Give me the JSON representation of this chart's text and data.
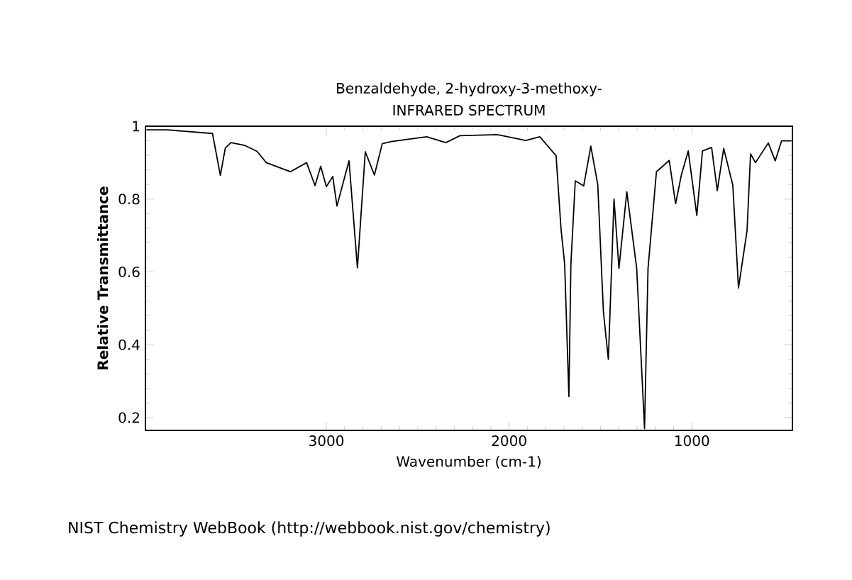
{
  "chart_data": {
    "type": "line",
    "title": "Benzaldehyde, 2-hydroxy-3-methoxy-",
    "subtitle": "INFRARED SPECTRUM",
    "xlabel": "Wavenumber (cm-1)",
    "ylabel": "Relative Transmittance",
    "annotations": [
      "NIST Chemistry WebBook (http://webbook.nist.gov/chemistry)"
    ],
    "xlim": [
      3990,
      450
    ],
    "ylim": [
      0.165,
      1.0
    ],
    "xticks": [
      3000,
      2000,
      1000
    ],
    "yticks": [
      0.2,
      0.4,
      0.6,
      0.8,
      1
    ],
    "series": [
      {
        "color": "#000000",
        "x": [
          3985,
          3870,
          3623,
          3580,
          3553,
          3522,
          3445,
          3379,
          3329,
          3197,
          3108,
          3062,
          3031,
          3000,
          2965,
          2942,
          2876,
          2830,
          2787,
          2737,
          2694,
          2644,
          2451,
          2346,
          2269,
          2064,
          1909,
          1832,
          1743,
          1716,
          1696,
          1673,
          1662,
          1638,
          1592,
          1553,
          1515,
          1484,
          1457,
          1426,
          1399,
          1356,
          1302,
          1259,
          1240,
          1194,
          1124,
          1089,
          1058,
          1020,
          973,
          942,
          892,
          861,
          826,
          776,
          745,
          698,
          679,
          652,
          582,
          544,
          509,
          455
        ],
        "values": [
          0.99,
          0.99,
          0.98,
          0.865,
          0.94,
          0.955,
          0.947,
          0.931,
          0.9,
          0.875,
          0.9,
          0.837,
          0.89,
          0.834,
          0.862,
          0.781,
          0.905,
          0.611,
          0.93,
          0.866,
          0.952,
          0.958,
          0.971,
          0.955,
          0.974,
          0.977,
          0.961,
          0.971,
          0.919,
          0.718,
          0.621,
          0.258,
          0.621,
          0.85,
          0.836,
          0.945,
          0.84,
          0.49,
          0.36,
          0.8,
          0.61,
          0.82,
          0.61,
          0.17,
          0.609,
          0.875,
          0.906,
          0.787,
          0.865,
          0.932,
          0.755,
          0.932,
          0.942,
          0.823,
          0.939,
          0.838,
          0.556,
          0.714,
          0.924,
          0.9,
          0.954,
          0.905,
          0.96,
          0.96
        ]
      }
    ]
  }
}
